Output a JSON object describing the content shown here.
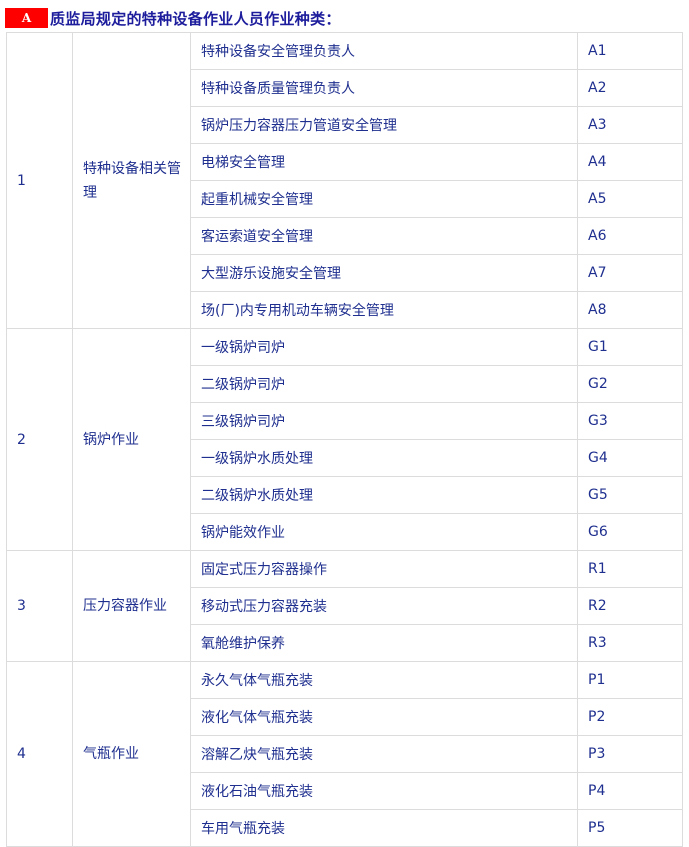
{
  "title": {
    "badge": "A",
    "text": "质监局规定的特种设备作业人员作业种类："
  },
  "groups": [
    {
      "no": "1",
      "category": "特种设备相关管理",
      "items": [
        {
          "name": "特种设备安全管理负责人",
          "code": "A1"
        },
        {
          "name": "特种设备质量管理负责人",
          "code": "A2"
        },
        {
          "name": "锅炉压力容器压力管道安全管理",
          "code": "A3"
        },
        {
          "name": "电梯安全管理",
          "code": "A4"
        },
        {
          "name": "起重机械安全管理",
          "code": "A5"
        },
        {
          "name": "客运索道安全管理",
          "code": "A6"
        },
        {
          "name": "大型游乐设施安全管理",
          "code": "A7"
        },
        {
          "name": "场(厂)内专用机动车辆安全管理",
          "code": "A8"
        }
      ]
    },
    {
      "no": "2",
      "category": "锅炉作业",
      "items": [
        {
          "name": "一级锅炉司炉",
          "code": "G1"
        },
        {
          "name": "二级锅炉司炉",
          "code": "G2"
        },
        {
          "name": "三级锅炉司炉",
          "code": "G3"
        },
        {
          "name": "一级锅炉水质处理",
          "code": "G4"
        },
        {
          "name": "二级锅炉水质处理",
          "code": "G5"
        },
        {
          "name": "锅炉能效作业",
          "code": "G6"
        }
      ]
    },
    {
      "no": "3",
      "category": "压力容器作业",
      "items": [
        {
          "name": "固定式压力容器操作",
          "code": "R1"
        },
        {
          "name": "移动式压力容器充装",
          "code": "R2"
        },
        {
          "name": "氧舱维护保养",
          "code": "R3"
        }
      ]
    },
    {
      "no": "4",
      "category": "气瓶作业",
      "items": [
        {
          "name": "永久气体气瓶充装",
          "code": "P1"
        },
        {
          "name": "液化气体气瓶充装",
          "code": "P2"
        },
        {
          "name": "溶解乙炔气瓶充装",
          "code": "P3"
        },
        {
          "name": "液化石油气瓶充装",
          "code": "P4"
        },
        {
          "name": "车用气瓶充装",
          "code": "P5"
        }
      ]
    }
  ]
}
